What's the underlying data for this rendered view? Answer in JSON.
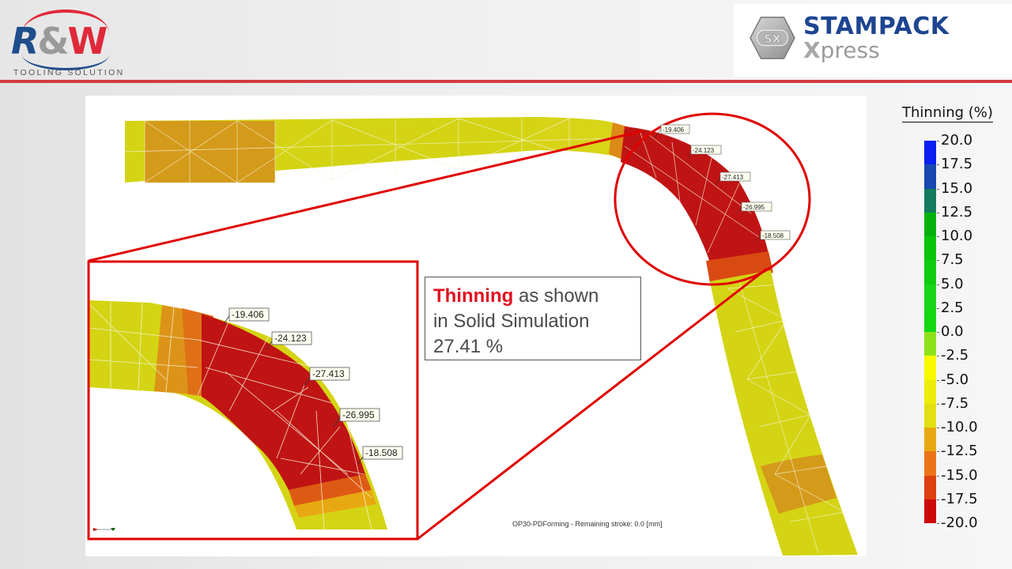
{
  "header": {
    "left_logo": {
      "letters": [
        "R",
        "&",
        "W"
      ],
      "tagline": "TOOLING SOLUTION",
      "colors": {
        "r": "#1e4d8c",
        "amp": "#9a9a9a",
        "w": "#e0293a"
      }
    },
    "right_logo": {
      "badge": "SX",
      "name": "STAMPACK",
      "sub_first": "X",
      "sub_rest": "press",
      "color": "#1d4591"
    },
    "rule_color": "#d33b42"
  },
  "simulation": {
    "status": "OP30-PDForming - Remaining stroke: 0.0 [mm]",
    "main_probe_labels": [
      "-19.406",
      "-24.123",
      "-27.413",
      "-26.995",
      "-18.508"
    ],
    "inset_probe_labels": [
      "-19.406",
      "-24.123",
      "-27.413",
      "-26.995",
      "-18.508"
    ],
    "highlight_color": "#e00000"
  },
  "callout": {
    "highlight": "Thinning",
    "line1_rest": " as shown",
    "line2": "in Solid Simulation",
    "line3": "27.41 %"
  },
  "legend": {
    "title": "Thinning (%)",
    "ticks": [
      "20.0",
      "17.5",
      "15.0",
      "12.5",
      "10.0",
      "7.5",
      "5.0",
      "2.5",
      "0.0",
      "-2.5",
      "-5.0",
      "-7.5",
      "-10.0",
      "-12.5",
      "-15.0",
      "-17.5",
      "-20.0"
    ],
    "segments": [
      "#0a1ef0",
      "#1848b0",
      "#137a5e",
      "#06b20a",
      "#0ac40a",
      "#10cc10",
      "#1ad61a",
      "#14d814",
      "#8ee21a",
      "#f8f800",
      "#eeec0a",
      "#e2e012",
      "#e8a812",
      "#ec7418",
      "#de4010",
      "#cc0a0a"
    ]
  }
}
